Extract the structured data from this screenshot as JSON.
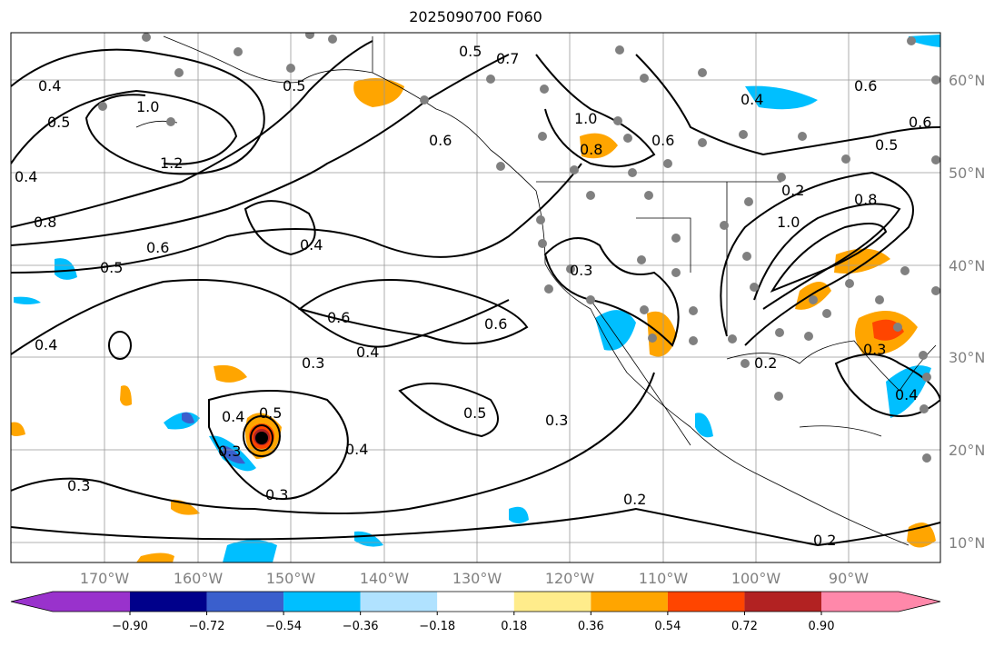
{
  "title": "2025090700 F060",
  "lon_ticks": [
    "170°W",
    "160°W",
    "150°W",
    "140°W",
    "130°W",
    "120°W",
    "110°W",
    "100°W",
    "90°W"
  ],
  "lat_ticks": [
    "60°N",
    "50°N",
    "40°N",
    "30°N",
    "20°N",
    "10°N"
  ],
  "extent": {
    "lon": [
      -180,
      -80
    ],
    "lat": [
      8,
      65
    ]
  },
  "colorbar": {
    "colors": [
      "#9932CC",
      "#00008B",
      "#3A5FCD",
      "#00BFFF",
      "#B0E2FF",
      "#FFFFFF",
      "#FFEC8B",
      "#FFA500",
      "#FF4500",
      "#B22222",
      "#FF88AA"
    ],
    "labels": [
      "−0.90",
      "−0.72",
      "−0.54",
      "−0.36",
      "−0.18",
      "0.18",
      "0.36",
      "0.54",
      "0.72",
      "0.90"
    ],
    "extend": "both"
  },
  "contour_labels": [
    "0.4",
    "0.5",
    "1.0",
    "1.2",
    "0.4",
    "0.8",
    "0.6",
    "0.5",
    "0.5",
    "0.7",
    "0.4",
    "0.6",
    "0.4",
    "0.3",
    "0.4",
    "0.6",
    "0.5",
    "0.3",
    "0.6",
    "0.4",
    "0.3",
    "0.5",
    "0.4",
    "0.3",
    "0.5",
    "0.3",
    "0.2",
    "0.2",
    "0.3",
    "1.0",
    "0.8",
    "0.6",
    "0.6",
    "0.5",
    "1.0",
    "0.8",
    "0.4",
    "0.2",
    "0.2",
    "0.3",
    "0.4",
    "0.6"
  ]
}
